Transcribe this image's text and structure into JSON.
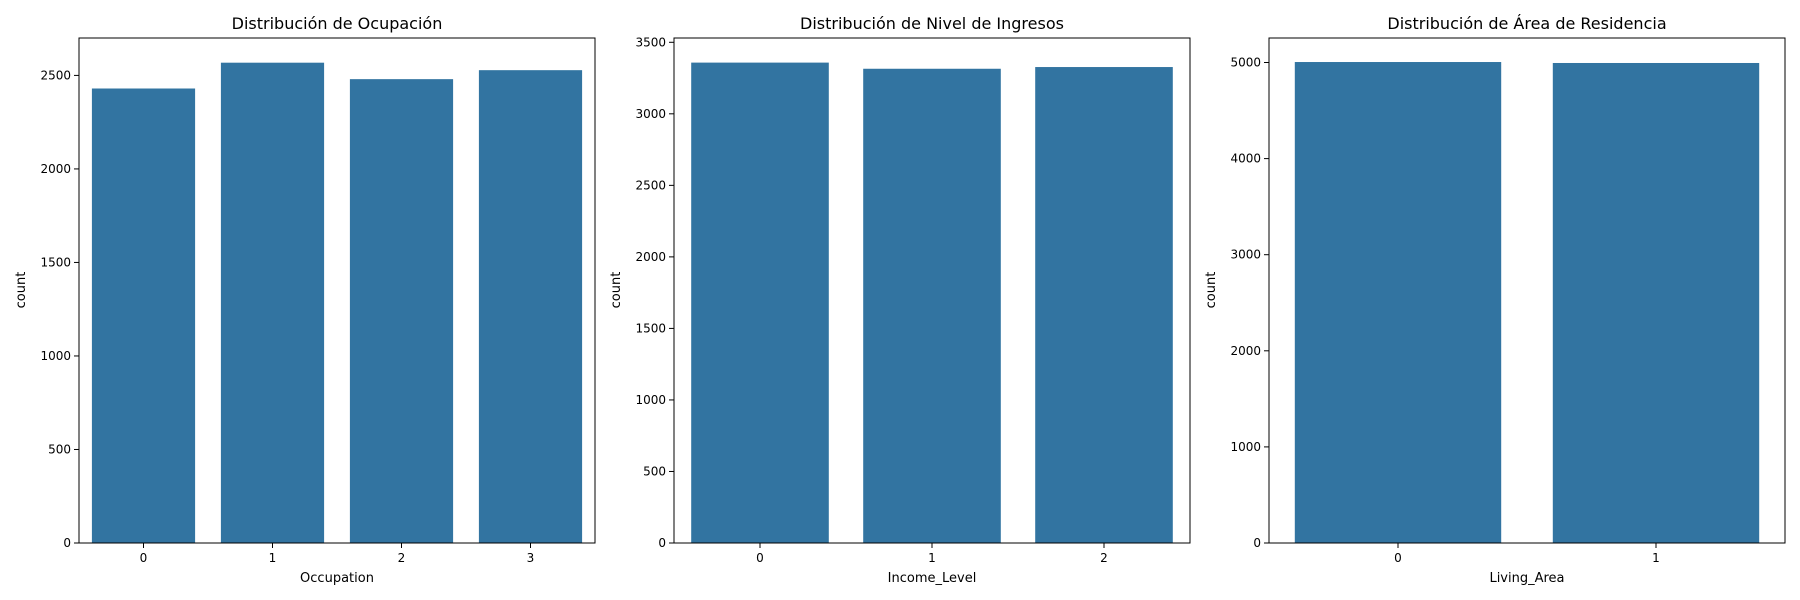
{
  "chart_data": [
    {
      "type": "bar",
      "title": "Distribución de Ocupación",
      "xlabel": "Occupation",
      "ylabel": "count",
      "categories": [
        "0",
        "1",
        "2",
        "3"
      ],
      "values": [
        2430,
        2568,
        2480,
        2528
      ],
      "ylim": [
        0,
        2700
      ],
      "yticks": [
        0,
        500,
        1000,
        1500,
        2000,
        2500
      ],
      "color": "#3274a1",
      "grid": false
    },
    {
      "type": "bar",
      "title": "Distribución de Nivel de Ingresos",
      "xlabel": "Income_Level",
      "ylabel": "count",
      "categories": [
        "0",
        "1",
        "2"
      ],
      "values": [
        3358,
        3315,
        3327
      ],
      "ylim": [
        0,
        3530
      ],
      "yticks": [
        0,
        500,
        1000,
        1500,
        2000,
        2500,
        3000,
        3500
      ],
      "color": "#3274a1",
      "grid": false
    },
    {
      "type": "bar",
      "title": "Distribución de Área de Residencia",
      "xlabel": "Living_Area",
      "ylabel": "count",
      "categories": [
        "0",
        "1"
      ],
      "values": [
        5005,
        4995
      ],
      "ylim": [
        0,
        5255
      ],
      "yticks": [
        0,
        1000,
        2000,
        3000,
        4000,
        5000
      ],
      "color": "#3274a1",
      "grid": false
    }
  ]
}
